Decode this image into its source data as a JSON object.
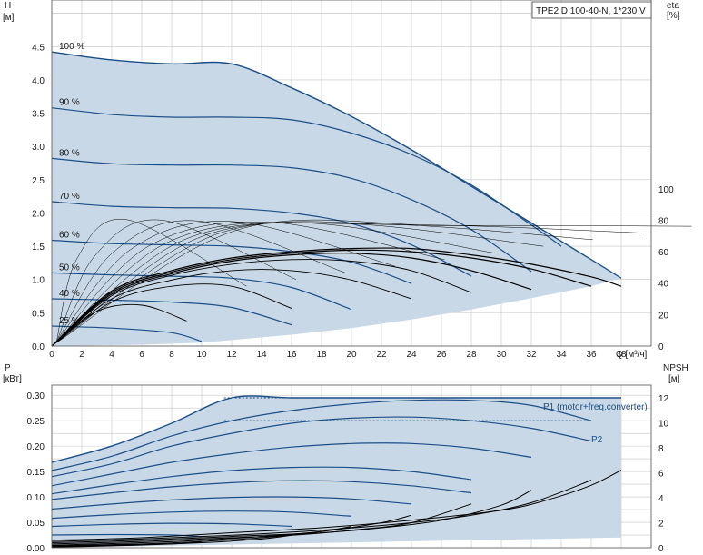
{
  "chart_data": {
    "type": "line",
    "title": "TPE2 D 100-40-N, 1*230 V",
    "colors": {
      "curve": "#1d4f86",
      "fill": "#c9d8e6",
      "grid": "#c4c4c4",
      "eff": "#000000"
    },
    "upper": {
      "ylabel_left": "H",
      "yunit_left": "[м]",
      "ylabel_right": "eta",
      "yunit_right": "[%]",
      "xlabel": "Q [м³/ч]",
      "xlim": [
        0,
        40
      ],
      "ylim_left": [
        0,
        5.2
      ],
      "ylim_right": [
        0,
        220
      ],
      "x_ticks": [
        "0",
        "2",
        "4",
        "6",
        "8",
        "10",
        "12",
        "14",
        "16",
        "18",
        "20",
        "22",
        "24",
        "26",
        "28",
        "30",
        "32",
        "34",
        "36",
        "38"
      ],
      "y_ticks_left": [
        "0.0",
        "0.5",
        "1.0",
        "1.5",
        "2.0",
        "2.5",
        "3.0",
        "3.5",
        "4.0",
        "4.5"
      ],
      "y_ticks_right": [
        "0",
        "20",
        "40",
        "60",
        "80",
        "100"
      ],
      "speed_curves": [
        {
          "label": "100 %",
          "q": [
            0,
            4,
            8,
            12,
            16,
            20,
            24,
            28,
            32,
            36,
            38
          ],
          "h": [
            4.42,
            4.3,
            4.24,
            4.24,
            3.88,
            3.45,
            2.95,
            2.4,
            1.85,
            1.3,
            1.02
          ]
        },
        {
          "label": "90 %",
          "q": [
            0,
            4,
            8,
            12,
            16,
            20,
            24,
            28,
            32,
            34
          ],
          "h": [
            3.58,
            3.48,
            3.44,
            3.44,
            3.4,
            3.2,
            2.88,
            2.42,
            1.82,
            1.5
          ]
        },
        {
          "label": "80 %",
          "q": [
            0,
            4,
            8,
            12,
            16,
            20,
            24,
            28,
            32
          ],
          "h": [
            2.82,
            2.74,
            2.72,
            2.72,
            2.68,
            2.52,
            2.2,
            1.75,
            1.12
          ]
        },
        {
          "label": "70 %",
          "q": [
            0,
            4,
            8,
            12,
            16,
            20,
            24,
            28
          ],
          "h": [
            2.17,
            2.1,
            2.08,
            2.07,
            2.0,
            1.84,
            1.52,
            1.05
          ]
        },
        {
          "label": "60 %",
          "q": [
            0,
            4,
            8,
            12,
            16,
            20,
            24
          ],
          "h": [
            1.59,
            1.54,
            1.52,
            1.5,
            1.42,
            1.26,
            0.94
          ]
        },
        {
          "label": "50 %",
          "q": [
            0,
            4,
            8,
            12,
            16,
            20
          ],
          "h": [
            1.1,
            1.07,
            1.05,
            1.02,
            0.88,
            0.55
          ]
        },
        {
          "label": "40 %",
          "q": [
            0,
            4,
            8,
            12,
            16
          ],
          "h": [
            0.71,
            0.69,
            0.66,
            0.58,
            0.32
          ]
        },
        {
          "label": "25 %",
          "q": [
            0,
            4,
            8,
            10
          ],
          "h": [
            0.3,
            0.27,
            0.2,
            0.07
          ]
        }
      ],
      "efficiency_curves": [
        {
          "q": [
            0,
            4,
            8,
            12,
            16,
            20,
            24,
            28,
            32,
            36,
            38
          ],
          "eta": [
            0,
            35,
            48,
            56,
            60,
            62,
            62,
            58,
            52,
            44,
            38
          ]
        },
        {
          "q": [
            0,
            4,
            8,
            12,
            16,
            20,
            24,
            28,
            32,
            36
          ],
          "eta": [
            0,
            34,
            47,
            55,
            59,
            61,
            60,
            56,
            49,
            38
          ]
        },
        {
          "q": [
            0,
            4,
            8,
            12,
            16,
            20,
            24,
            28,
            32
          ],
          "eta": [
            0,
            33,
            46,
            54,
            58,
            59,
            56,
            48,
            36
          ]
        },
        {
          "q": [
            0,
            4,
            8,
            12,
            16,
            20,
            24,
            28
          ],
          "eta": [
            0,
            32,
            45,
            52,
            55,
            54,
            48,
            34
          ]
        },
        {
          "q": [
            0,
            4,
            8,
            12,
            16,
            20,
            24
          ],
          "eta": [
            0,
            30,
            42,
            48,
            48,
            42,
            30
          ]
        },
        {
          "q": [
            0,
            4,
            8,
            12,
            16
          ],
          "eta": [
            0,
            28,
            38,
            38,
            24
          ]
        },
        {
          "q": [
            0,
            3,
            6,
            9
          ],
          "eta": [
            0,
            22,
            26,
            16
          ]
        }
      ]
    },
    "lower": {
      "ylabel_left": "P",
      "yunit_left": "[кВт]",
      "ylabel_right": "NPSH",
      "yunit_right": "[м]",
      "xlim": [
        0,
        40
      ],
      "ylim_left": [
        0,
        0.32
      ],
      "ylim_right": [
        0,
        13
      ],
      "y_ticks_left": [
        "0.00",
        "0.05",
        "0.10",
        "0.15",
        "0.20",
        "0.25",
        "0.30"
      ],
      "y_ticks_right": [
        "0",
        "2",
        "4",
        "6",
        "8",
        "10",
        "12"
      ],
      "annotations": [
        "P1 (motor+freq.converter)",
        "P2"
      ],
      "power_curves": [
        {
          "q": [
            0,
            4,
            8,
            12,
            16,
            20,
            24,
            28,
            32,
            36,
            38
          ],
          "p": [
            0.168,
            0.2,
            0.245,
            0.295,
            0.295,
            0.295,
            0.295,
            0.295,
            0.295,
            0.295,
            0.295
          ]
        },
        {
          "q": [
            0,
            4,
            8,
            12,
            16,
            20,
            24,
            28,
            32,
            36
          ],
          "p": [
            0.152,
            0.18,
            0.22,
            0.25,
            0.27,
            0.283,
            0.29,
            0.29,
            0.28,
            0.25
          ]
        },
        {
          "q": [
            0,
            4,
            8,
            12,
            16,
            20,
            24,
            28,
            32,
            36
          ],
          "p": [
            0.14,
            0.165,
            0.2,
            0.225,
            0.245,
            0.255,
            0.257,
            0.25,
            0.235,
            0.21
          ]
        },
        {
          "q": [
            0,
            4,
            8,
            12,
            16,
            20,
            24,
            28,
            32
          ],
          "p": [
            0.122,
            0.145,
            0.168,
            0.185,
            0.198,
            0.205,
            0.205,
            0.196,
            0.178
          ]
        },
        {
          "q": [
            0,
            4,
            8,
            12,
            16,
            20,
            24,
            28
          ],
          "p": [
            0.106,
            0.124,
            0.14,
            0.152,
            0.158,
            0.158,
            0.15,
            0.134
          ]
        },
        {
          "q": [
            0,
            4,
            8,
            12,
            16,
            20,
            24,
            28
          ],
          "p": [
            0.095,
            0.108,
            0.12,
            0.128,
            0.132,
            0.13,
            0.122,
            0.108
          ]
        },
        {
          "q": [
            0,
            4,
            8,
            12,
            16,
            20,
            24
          ],
          "p": [
            0.076,
            0.086,
            0.094,
            0.099,
            0.1,
            0.096,
            0.086
          ]
        },
        {
          "q": [
            0,
            4,
            8,
            12,
            16,
            20
          ],
          "p": [
            0.058,
            0.065,
            0.07,
            0.072,
            0.07,
            0.062
          ]
        },
        {
          "q": [
            0,
            4,
            8,
            12,
            16
          ],
          "p": [
            0.042,
            0.046,
            0.048,
            0.047,
            0.042
          ]
        },
        {
          "q": [
            0,
            4,
            8,
            10
          ],
          "p": [
            0.025,
            0.026,
            0.025,
            0.022
          ]
        }
      ],
      "npsh_curves": [
        {
          "q": [
            0,
            6,
            12,
            18,
            24,
            30,
            33,
            36,
            38
          ],
          "npsh": [
            0.6,
            0.8,
            1.2,
            1.6,
            2.2,
            3.0,
            3.8,
            5.0,
            6.2
          ]
        },
        {
          "q": [
            0,
            6,
            12,
            18,
            24,
            28,
            32,
            36
          ],
          "npsh": [
            0.5,
            0.7,
            1.0,
            1.4,
            2.0,
            2.6,
            3.6,
            5.4
          ]
        },
        {
          "q": [
            0,
            6,
            12,
            18,
            22,
            26,
            30,
            32
          ],
          "npsh": [
            0.4,
            0.6,
            0.9,
            1.2,
            1.6,
            2.2,
            3.4,
            4.6
          ]
        },
        {
          "q": [
            0,
            6,
            12,
            16,
            20,
            24,
            28
          ],
          "npsh": [
            0.3,
            0.5,
            0.8,
            1.0,
            1.4,
            2.0,
            3.5
          ]
        },
        {
          "q": [
            0,
            6,
            10,
            14,
            18,
            22,
            24
          ],
          "npsh": [
            0.2,
            0.4,
            0.6,
            0.9,
            1.3,
            2.0,
            2.6
          ]
        },
        {
          "q": [
            0,
            6,
            10,
            14,
            18,
            20
          ],
          "npsh": [
            0.15,
            0.3,
            0.5,
            0.8,
            1.3,
            1.7
          ]
        },
        {
          "q": [
            0,
            6,
            10,
            14,
            16
          ],
          "npsh": [
            0.1,
            0.25,
            0.4,
            0.7,
            1.0
          ]
        },
        {
          "q": [
            0,
            4,
            8,
            10
          ],
          "npsh": [
            0.05,
            0.15,
            0.3,
            0.45
          ]
        }
      ]
    }
  }
}
